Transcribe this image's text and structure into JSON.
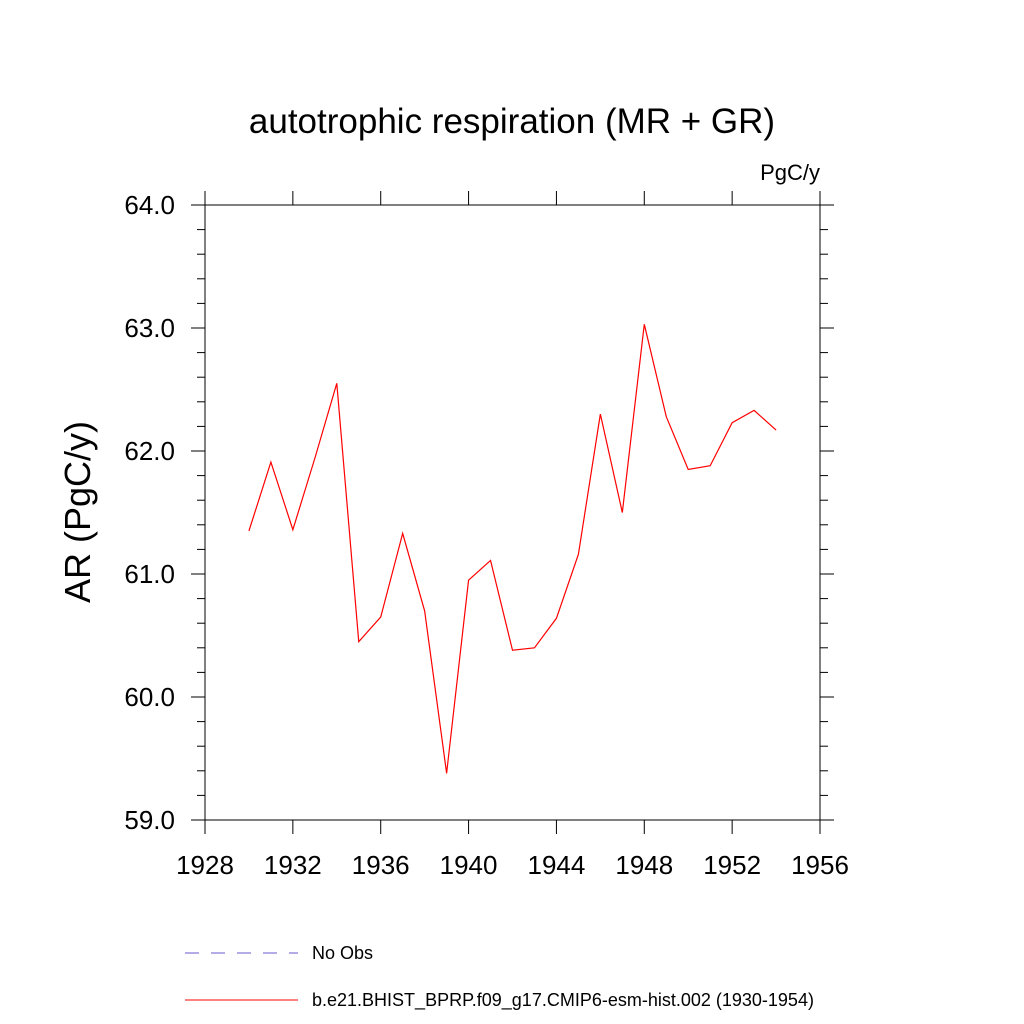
{
  "chart_data": {
    "type": "line",
    "title": "autotrophic respiration (MR + GR)",
    "units": "PgC/y",
    "ylabel": "AR  (PgC/y)",
    "xlabel": "",
    "xlim": [
      1928,
      1956
    ],
    "ylim": [
      59.0,
      64.0
    ],
    "x_ticks": [
      1928,
      1932,
      1936,
      1940,
      1944,
      1948,
      1952,
      1956
    ],
    "y_ticks": [
      "59.0",
      "60.0",
      "61.0",
      "62.0",
      "63.0",
      "64.0"
    ],
    "grid": false,
    "legend_placement": "bottom",
    "series": [
      {
        "name": "b.e21.BHIST_BPRP.f09_g17.CMIP6-esm-hist.002 (1930-1954)",
        "color": "#ff0000",
        "style": "solid",
        "x": [
          1930,
          1931,
          1932,
          1933,
          1934,
          1935,
          1936,
          1937,
          1938,
          1939,
          1940,
          1941,
          1942,
          1943,
          1944,
          1945,
          1946,
          1947,
          1948,
          1949,
          1950,
          1951,
          1952,
          1953,
          1954
        ],
        "y": [
          61.35,
          61.91,
          61.36,
          61.94,
          62.55,
          60.45,
          60.65,
          61.33,
          60.7,
          59.38,
          60.95,
          61.11,
          60.38,
          60.4,
          60.64,
          61.16,
          62.3,
          61.5,
          63.03,
          62.28,
          61.85,
          61.88,
          62.23,
          62.33,
          62.17
        ]
      }
    ],
    "legend": [
      {
        "label": "No Obs",
        "color": "#6a5acd",
        "style": "dashed"
      },
      {
        "label": "b.e21.BHIST_BPRP.f09_g17.CMIP6-esm-hist.002 (1930-1954)",
        "color": "#ff0000",
        "style": "solid"
      }
    ]
  }
}
